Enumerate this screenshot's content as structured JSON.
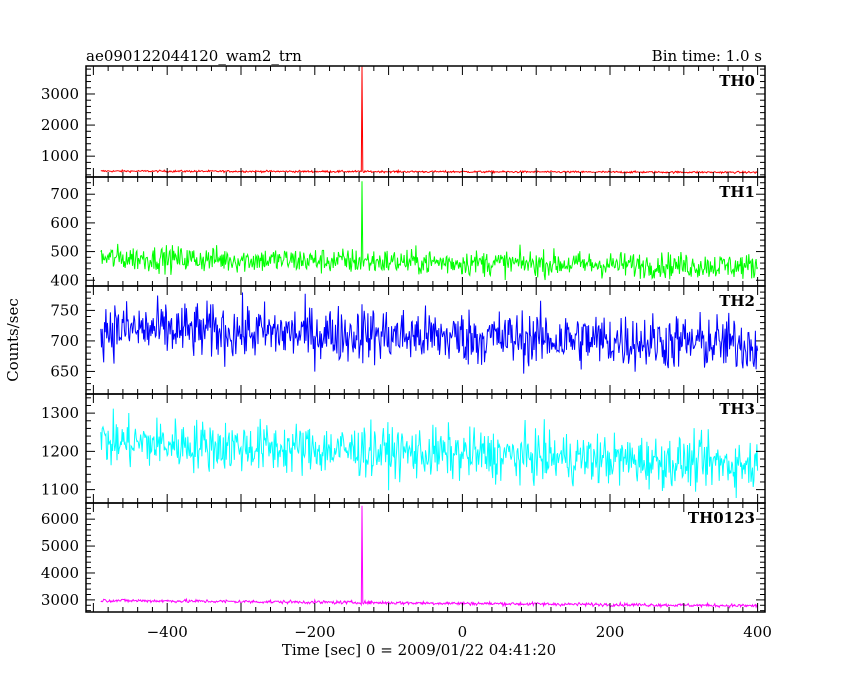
{
  "header": {
    "title": "ae090122044120_wam2_trn",
    "bin_time": "Bin time: 1.0 s"
  },
  "chart_data": {
    "type": "line",
    "xlabel": "Time [sec] 0 = 2009/01/22 04:41:20",
    "ylabel": "Counts/sec",
    "xlim": [
      -510,
      410
    ],
    "x_ticks": [
      -400,
      -200,
      0,
      200,
      400
    ],
    "x_tick_labels": [
      "−400",
      "−200",
      "0",
      "200",
      "400"
    ],
    "burst_time": -136,
    "grid": false,
    "panels": [
      {
        "name": "TH0",
        "color": "#ff0000",
        "ylim": [
          330,
          3900
        ],
        "y_ticks": [
          1000,
          2000,
          3000
        ],
        "baseline_start": 520,
        "baseline_end": 480,
        "noise": 22,
        "spike_value": 3880,
        "x_start": -490,
        "x_end": 400
      },
      {
        "name": "TH1",
        "color": "#00ff00",
        "ylim": [
          380,
          760
        ],
        "y_ticks": [
          400,
          500,
          600,
          700
        ],
        "baseline_start": 478,
        "baseline_end": 448,
        "noise": 32,
        "spike_value": 745,
        "x_start": -490,
        "x_end": 400
      },
      {
        "name": "TH2",
        "color": "#0000ff",
        "ylim": [
          613,
          790
        ],
        "y_ticks": [
          650,
          700,
          750
        ],
        "baseline_start": 720,
        "baseline_end": 695,
        "noise": 33,
        "spike_value": 760,
        "x_start": -490,
        "x_end": 400
      },
      {
        "name": "TH3",
        "color": "#00ffff",
        "ylim": [
          1065,
          1350
        ],
        "y_ticks": [
          1100,
          1200,
          1300
        ],
        "baseline_start": 1225,
        "baseline_end": 1165,
        "noise": 48,
        "spike_value": 1250,
        "x_start": -490,
        "x_end": 400
      },
      {
        "name": "TH0123",
        "color": "#ff00ff",
        "ylim": [
          2550,
          6600
        ],
        "y_ticks": [
          3000,
          4000,
          5000,
          6000
        ],
        "baseline_start": 2980,
        "baseline_end": 2780,
        "noise": 45,
        "spike_value": 6500,
        "x_start": -490,
        "x_end": 400
      }
    ]
  }
}
